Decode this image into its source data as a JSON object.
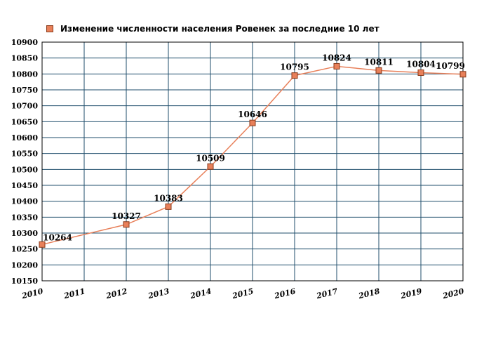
{
  "chart_data": {
    "type": "line",
    "legend": {
      "position": "top-left",
      "entries": [
        "Изменение численности населения Ровенек за последние 10 лет"
      ]
    },
    "series": [
      {
        "name": "Изменение численности населения Ровенек за последние 10 лет",
        "color": "#e8805a",
        "marker_color": "#e8805a",
        "marker_border": "#8a3a1a",
        "points": [
          {
            "x": "2010",
            "y": 10264,
            "label": "10264"
          },
          {
            "x": "2012",
            "y": 10327,
            "label": "10327"
          },
          {
            "x": "2013",
            "y": 10383,
            "label": "10383"
          },
          {
            "x": "2014",
            "y": 10509,
            "label": "10509"
          },
          {
            "x": "2015",
            "y": 10646,
            "label": "10646"
          },
          {
            "x": "2016",
            "y": 10795,
            "label": "10795"
          },
          {
            "x": "2017",
            "y": 10824,
            "label": "10824"
          },
          {
            "x": "2018",
            "y": 10811,
            "label": "10811"
          },
          {
            "x": "2019",
            "y": 10804,
            "label": "10804"
          },
          {
            "x": "2020",
            "y": 10799,
            "label": "10799"
          }
        ]
      }
    ],
    "x_categories": [
      "2010",
      "2011",
      "2012",
      "2013",
      "2014",
      "2015",
      "2016",
      "2017",
      "2018",
      "2019",
      "2020"
    ],
    "y_ticks": [
      10150,
      10200,
      10250,
      10300,
      10350,
      10400,
      10450,
      10500,
      10550,
      10600,
      10650,
      10700,
      10750,
      10800,
      10850,
      10900
    ],
    "ylim": [
      10150,
      10900
    ],
    "grid": true,
    "grid_color": "#1f4e6b"
  }
}
